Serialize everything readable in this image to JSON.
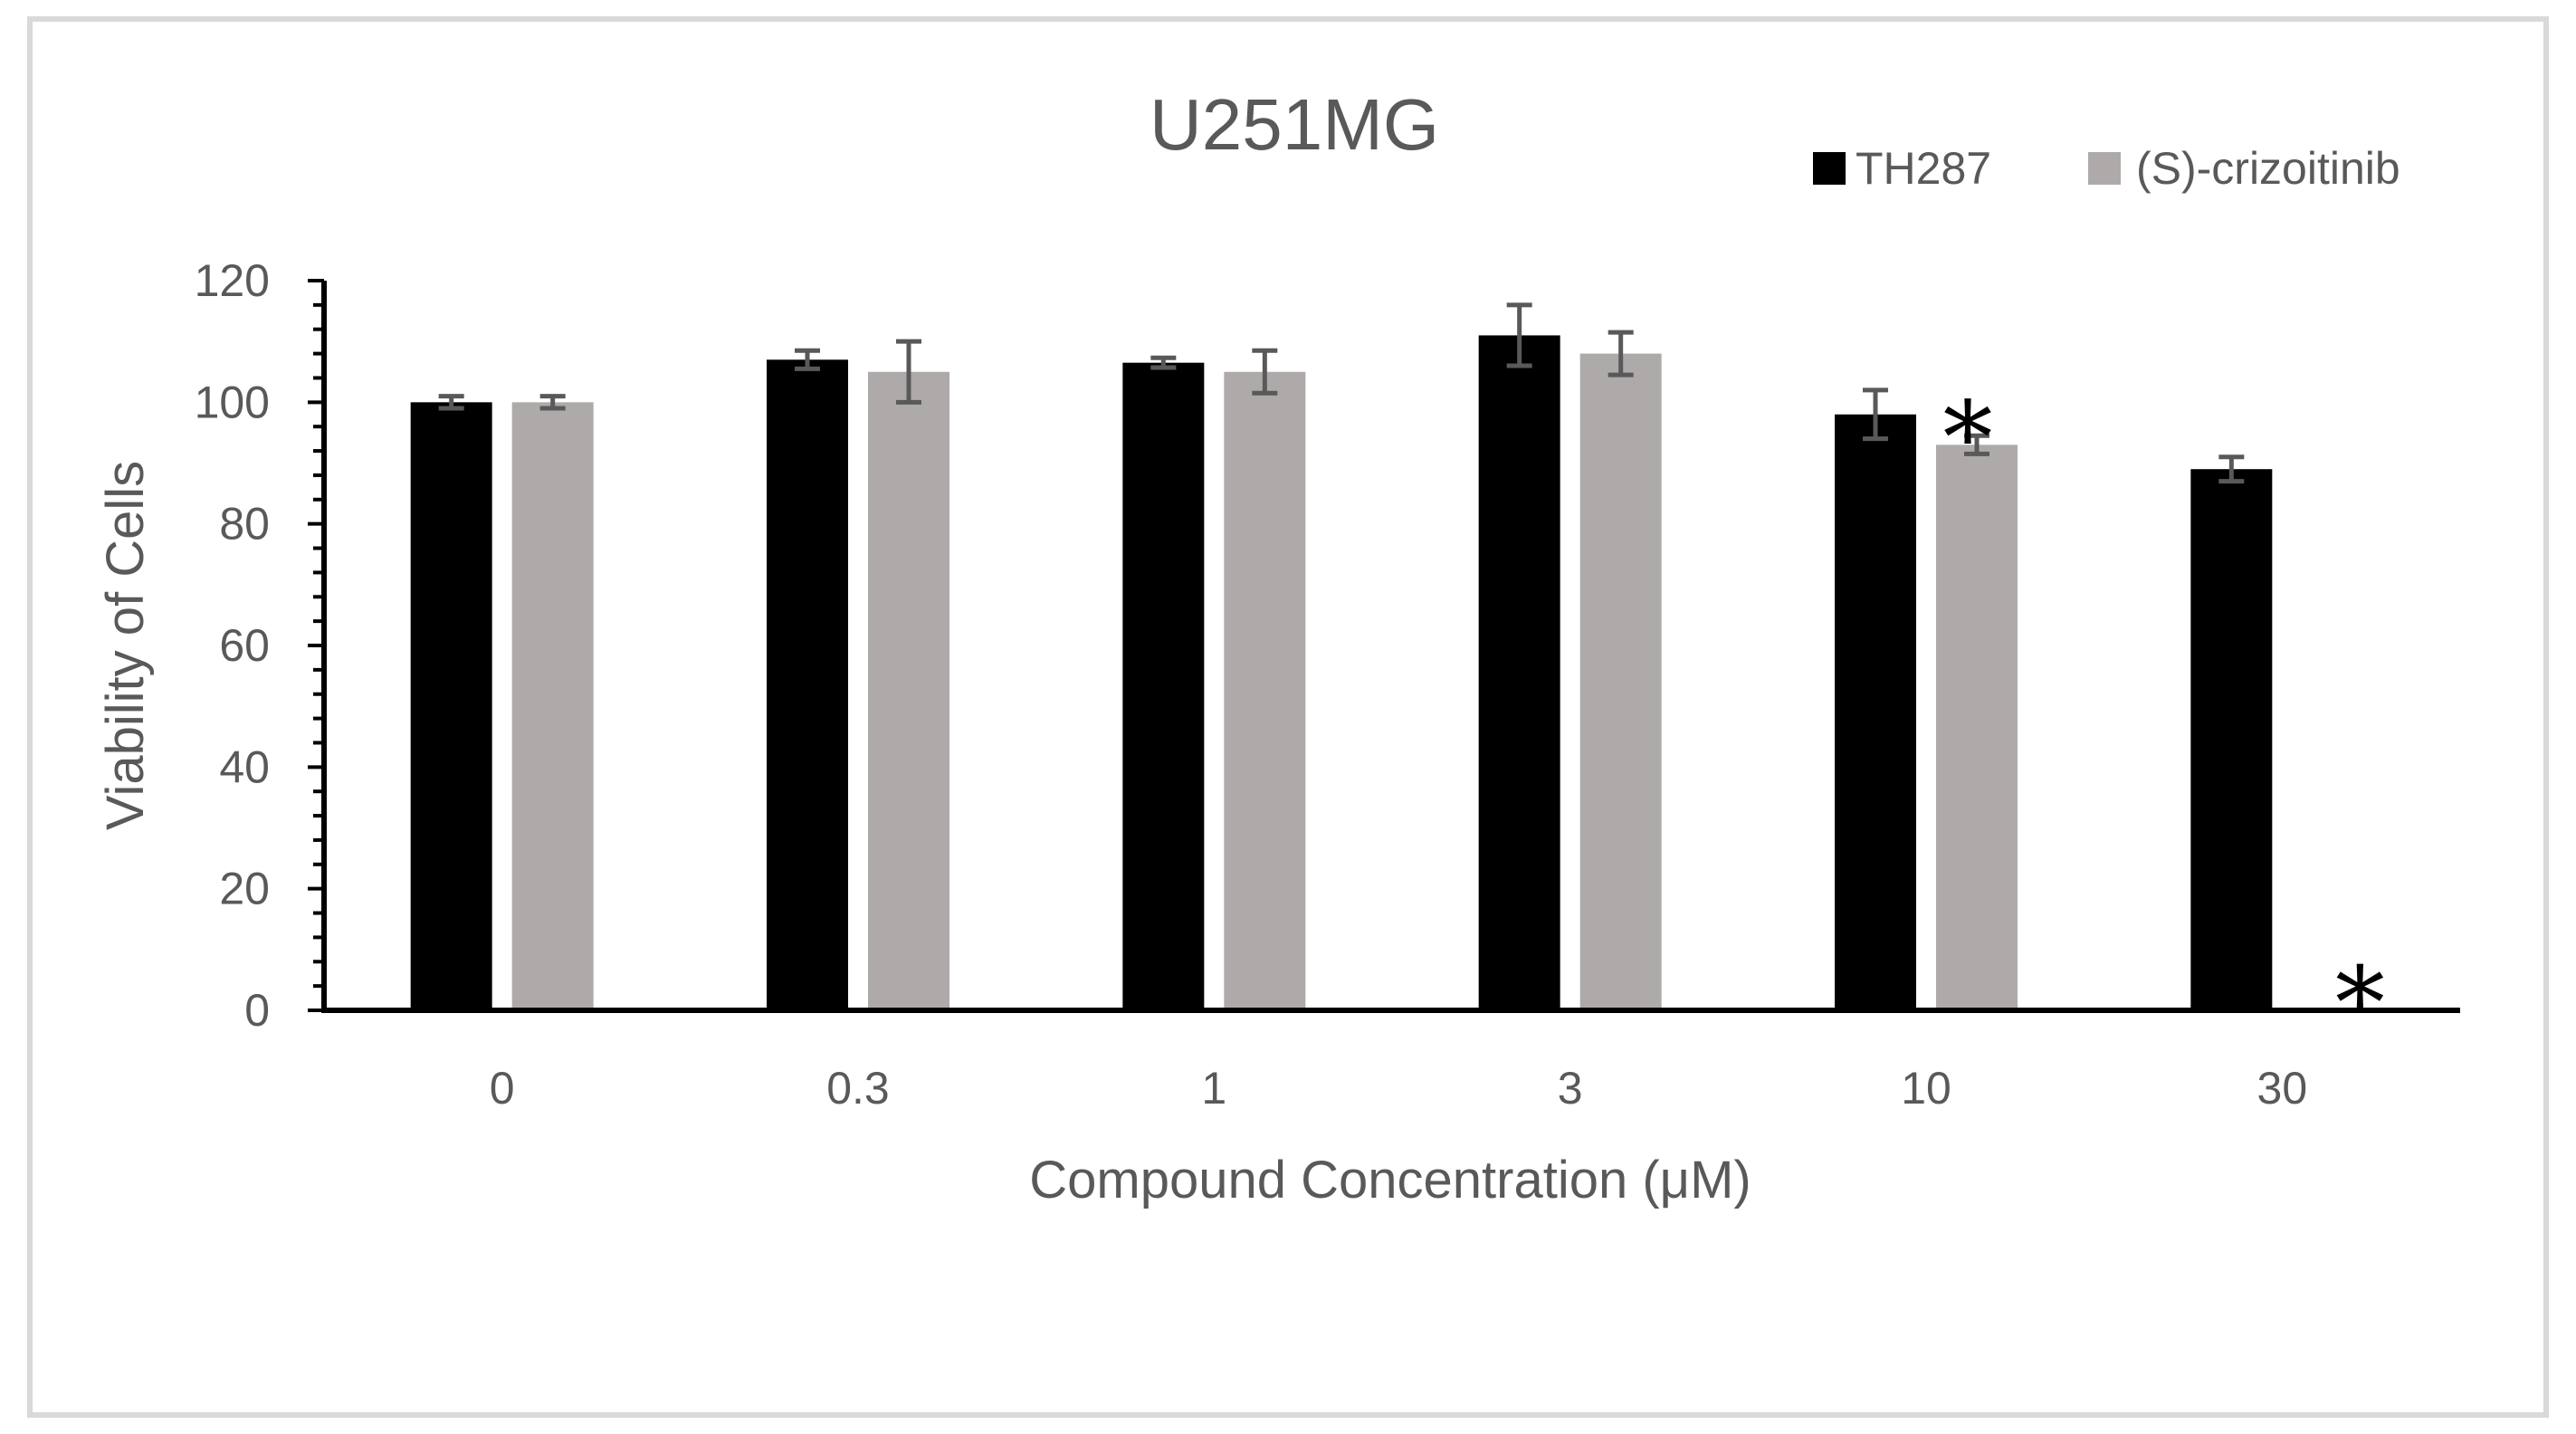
{
  "chart_data": {
    "type": "bar",
    "title": "U251MG",
    "xlabel": "Compound Concentration (μM)",
    "ylabel": "Viability of Cells",
    "categories": [
      "0",
      "0.3",
      "1",
      "3",
      "10",
      "30"
    ],
    "ylim": [
      0,
      120
    ],
    "yticks": [
      "0",
      "20",
      "40",
      "60",
      "80",
      "100",
      "120"
    ],
    "series": [
      {
        "name": "TH287",
        "color": "#000000",
        "values": [
          100,
          107,
          106.5,
          111,
          98,
          89
        ],
        "errors": [
          1,
          1.5,
          0.8,
          5,
          4,
          2
        ]
      },
      {
        "name": "(S)-crizoitinib",
        "color": "#aeaaaa",
        "values": [
          100,
          105,
          105,
          108,
          93,
          0
        ],
        "errors": [
          1,
          5,
          3.5,
          3.5,
          1.5,
          0
        ]
      }
    ],
    "annotations": [
      {
        "text": "*",
        "category": "10",
        "series": "(S)-crizoitinib"
      },
      {
        "text": "*",
        "category": "30",
        "series": "(S)-crizoitinib"
      }
    ],
    "legend": "top-right",
    "grid": false
  }
}
